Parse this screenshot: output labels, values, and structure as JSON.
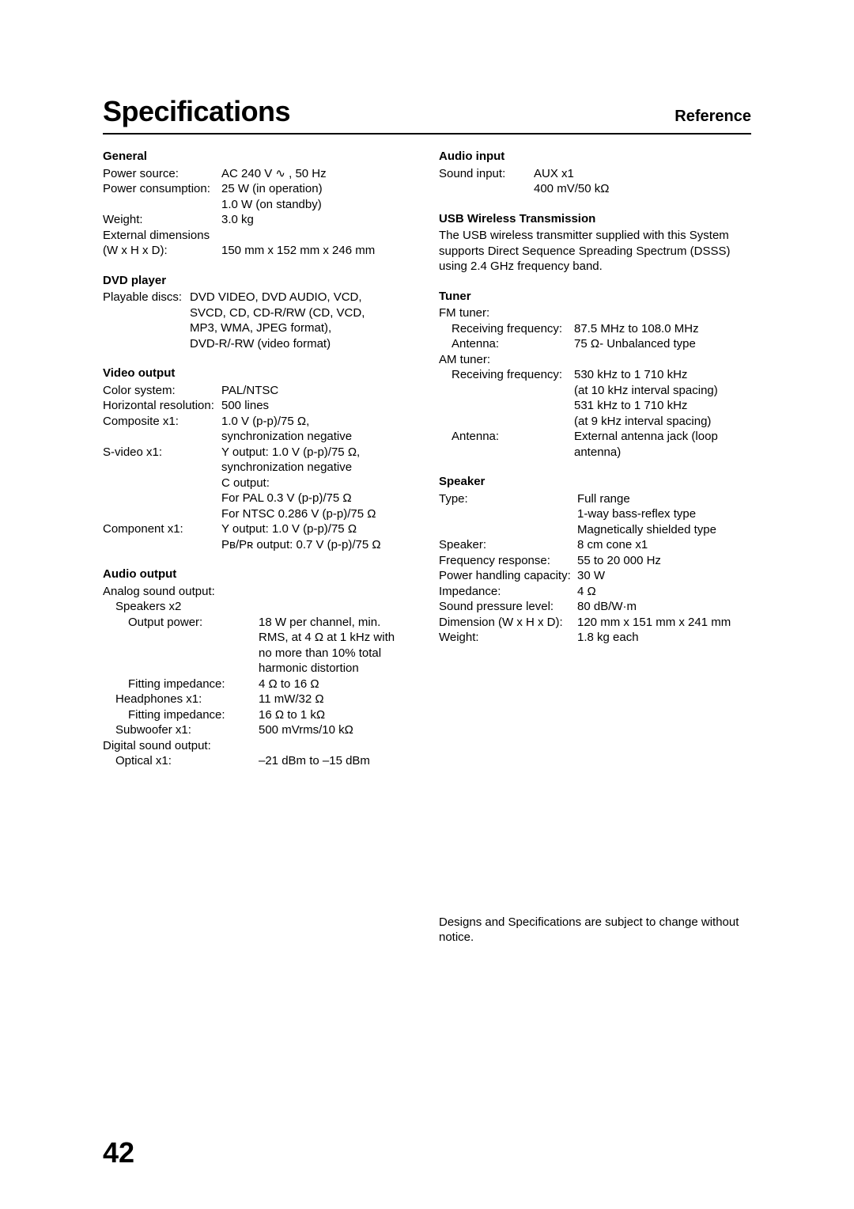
{
  "pageTitle": "Specifications",
  "pageSection": "Reference",
  "pageNumber": "42",
  "left": {
    "general": {
      "head": "General",
      "rows": [
        {
          "label": "Power source:",
          "value": "AC 240 V ∿ , 50 Hz",
          "lw": 150
        },
        {
          "label": "Power consumption:",
          "value": "25 W (in operation)",
          "lw": 150
        },
        {
          "label": "",
          "value": "1.0 W (on standby)",
          "lw": 150
        },
        {
          "label": "Weight:",
          "value": "3.0 kg",
          "lw": 150
        },
        {
          "label": "External dimensions",
          "value": "",
          "lw": 150
        },
        {
          "label": "(W x H x D):",
          "value": "150 mm x 152 mm x 246 mm",
          "lw": 150
        }
      ]
    },
    "dvd": {
      "head": "DVD player",
      "rows": [
        {
          "label": "Playable discs:",
          "value": "DVD VIDEO, DVD AUDIO, VCD,",
          "lw": 110
        },
        {
          "label": "",
          "value": "SVCD, CD, CD-R/RW (CD, VCD,",
          "lw": 110
        },
        {
          "label": "",
          "value": "MP3, WMA, JPEG format),",
          "lw": 110
        },
        {
          "label": "",
          "value": "DVD-R/-RW (video format)",
          "lw": 110
        }
      ]
    },
    "video": {
      "head": "Video output",
      "rows": [
        {
          "label": "Color system:",
          "value": "PAL/NTSC",
          "lw": 150
        },
        {
          "label": "Horizontal resolution:",
          "value": "500 lines",
          "lw": 150
        },
        {
          "label": "Composite x1:",
          "value": "1.0 V (p-p)/75 Ω,",
          "lw": 150
        },
        {
          "label": "",
          "value": "synchronization negative",
          "lw": 150
        },
        {
          "label": "S-video x1:",
          "value": "Y output: 1.0 V (p-p)/75 Ω,",
          "lw": 150
        },
        {
          "label": "",
          "value": "synchronization negative",
          "lw": 150
        },
        {
          "label": "",
          "value": "C output:",
          "lw": 150
        },
        {
          "label": "",
          "value": "For PAL 0.3 V (p-p)/75 Ω",
          "lw": 150
        },
        {
          "label": "",
          "value": "For NTSC 0.286 V (p-p)/75 Ω",
          "lw": 150
        },
        {
          "label": "Component x1:",
          "value": "Y output: 1.0 V (p-p)/75 Ω",
          "lw": 150
        },
        {
          "label": "",
          "value": "Pʙ/Pʀ output: 0.7 V (p-p)/75 Ω",
          "lw": 150
        }
      ]
    },
    "audioOut": {
      "head": "Audio output",
      "lines": [
        {
          "text": "Analog sound output:",
          "indent": 0
        },
        {
          "text": "Speakers x2",
          "indent": 1
        }
      ],
      "rows1": [
        {
          "label": "Output power:",
          "value": "18 W per channel, min.",
          "lw": 165,
          "indent": 2
        },
        {
          "label": "",
          "value": "RMS, at 4 Ω at 1 kHz with",
          "lw": 165,
          "indent": 2
        },
        {
          "label": "",
          "value": "no more than 10% total",
          "lw": 165,
          "indent": 2
        },
        {
          "label": "",
          "value": "harmonic distortion",
          "lw": 165,
          "indent": 2
        },
        {
          "label": "Fitting impedance:",
          "value": "4 Ω to 16 Ω",
          "lw": 165,
          "indent": 2
        },
        {
          "label": "Headphones x1:",
          "value": "11 mW/32 Ω",
          "lw": 181,
          "indent": 1
        },
        {
          "label": "Fitting impedance:",
          "value": "16 Ω to 1 kΩ",
          "lw": 165,
          "indent": 2
        },
        {
          "label": "Subwoofer x1:",
          "value": "500 mVrms/10 kΩ",
          "lw": 181,
          "indent": 1
        }
      ],
      "lines2": [
        {
          "text": "Digital sound output:",
          "indent": 0
        }
      ],
      "rows2": [
        {
          "label": "Optical x1:",
          "value": "–21 dBm to –15 dBm",
          "lw": 181,
          "indent": 1
        }
      ]
    }
  },
  "right": {
    "audioIn": {
      "head": "Audio input",
      "rows": [
        {
          "label": "Sound input:",
          "value": "AUX x1",
          "lw": 120
        },
        {
          "label": "",
          "value": "400 mV/50 kΩ",
          "lw": 120
        }
      ]
    },
    "usb": {
      "head": "USB Wireless Transmission",
      "para": "The USB wireless transmitter supplied with this System supports Direct Sequence Spreading Spectrum (DSSS) using 2.4 GHz frequency band."
    },
    "tuner": {
      "head": "Tuner",
      "fmLabel": "FM tuner:",
      "fmRows": [
        {
          "label": "Receiving frequency:",
          "value": "87.5 MHz to 108.0 MHz",
          "lw": 155,
          "indent": 1
        },
        {
          "label": "Antenna:",
          "value": "75 Ω- Unbalanced type",
          "lw": 155,
          "indent": 1
        }
      ],
      "amLabel": "AM tuner:",
      "amRows": [
        {
          "label": "Receiving frequency:",
          "value": "530 kHz to 1 710 kHz",
          "lw": 155,
          "indent": 1
        },
        {
          "label": "",
          "value": "(at 10 kHz interval spacing)",
          "lw": 155,
          "indent": 1
        },
        {
          "label": "",
          "value": "531 kHz to 1 710 kHz",
          "lw": 155,
          "indent": 1
        },
        {
          "label": "",
          "value": "(at 9 kHz interval spacing)",
          "lw": 155,
          "indent": 1
        },
        {
          "label": "Antenna:",
          "value": "External antenna jack (loop",
          "lw": 155,
          "indent": 1
        },
        {
          "label": "",
          "value": "antenna)",
          "lw": 155,
          "indent": 1
        }
      ]
    },
    "speaker": {
      "head": "Speaker",
      "rows": [
        {
          "label": "Type:",
          "value": "Full range",
          "lw": 175
        },
        {
          "label": "",
          "value": "1-way bass-reflex type",
          "lw": 175
        },
        {
          "label": "",
          "value": "Magnetically shielded type",
          "lw": 175
        },
        {
          "label": "Speaker:",
          "value": "8 cm cone x1",
          "lw": 175
        },
        {
          "label": "Frequency response:",
          "value": "55 to 20 000 Hz",
          "lw": 175
        },
        {
          "label": "Power handling capacity:",
          "value": "30 W",
          "lw": 175
        },
        {
          "label": "Impedance:",
          "value": "4 Ω",
          "lw": 175
        },
        {
          "label": "Sound pressure level:",
          "value": "80 dB/W·m",
          "lw": 175
        },
        {
          "label": "Dimension (W x H x D):",
          "value": "120 mm x 151 mm x 241 mm",
          "lw": 175
        },
        {
          "label": "Weight:",
          "value": "1.8 kg each",
          "lw": 175
        }
      ]
    },
    "notice": "Designs and Specifications are subject to change without notice."
  }
}
